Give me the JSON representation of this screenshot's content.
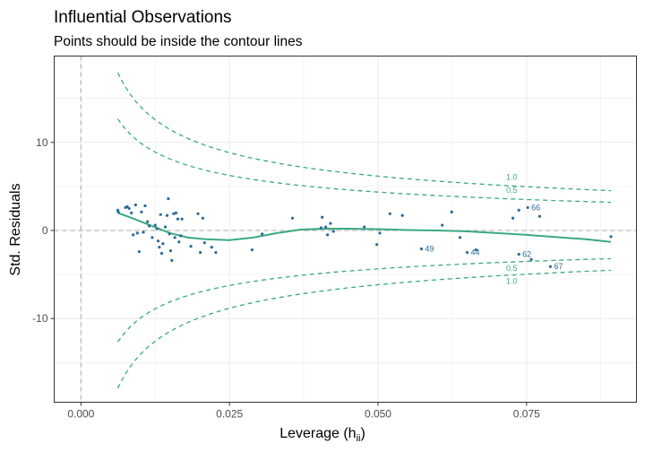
{
  "chart_data": {
    "type": "scatter",
    "title": "Influential Observations",
    "subtitle": "Points should be inside the contour lines",
    "xlabel": "Leverage (h",
    "xlabel_sub": "ii",
    "xlabel_close": ")",
    "ylabel": "Std. Residuals",
    "xlim": [
      -0.0045,
      0.0935
    ],
    "ylim": [
      -19.5,
      19.8
    ],
    "x_ticks": [
      0.0,
      0.025,
      0.05,
      0.075
    ],
    "x_tick_labels": [
      "0.000",
      "0.025",
      "0.050",
      "0.075"
    ],
    "y_ticks": [
      -10,
      0,
      10
    ],
    "y_tick_labels": [
      "-10",
      "0",
      "10"
    ],
    "grid": true,
    "colors": {
      "points": "#2d6a97",
      "contour": "#3aaa80",
      "smooth": "#3aaa80",
      "reference": "#a6a6a6"
    },
    "points": [
      {
        "x": 0.0062,
        "y": 2.3
      },
      {
        "x": 0.0063,
        "y": 2.1
      },
      {
        "x": 0.0075,
        "y": 2.6
      },
      {
        "x": 0.0078,
        "y": 2.7
      },
      {
        "x": 0.0081,
        "y": 2.5
      },
      {
        "x": 0.0088,
        "y": -0.5
      },
      {
        "x": 0.0085,
        "y": 2.0
      },
      {
        "x": 0.0092,
        "y": 2.9
      },
      {
        "x": 0.0095,
        "y": -0.3
      },
      {
        "x": 0.0098,
        "y": -2.4
      },
      {
        "x": 0.0102,
        "y": 2.1
      },
      {
        "x": 0.0105,
        "y": -0.2
      },
      {
        "x": 0.0108,
        "y": 2.8
      },
      {
        "x": 0.0112,
        "y": 1.0
      },
      {
        "x": 0.0115,
        "y": 0.5
      },
      {
        "x": 0.012,
        "y": -0.8
      },
      {
        "x": 0.0125,
        "y": 0.6
      },
      {
        "x": 0.0128,
        "y": 0.2
      },
      {
        "x": 0.013,
        "y": -1.2
      },
      {
        "x": 0.0132,
        "y": -1.9
      },
      {
        "x": 0.0134,
        "y": 1.8
      },
      {
        "x": 0.0136,
        "y": -2.6
      },
      {
        "x": 0.0138,
        "y": -1.5
      },
      {
        "x": 0.0142,
        "y": 0.4
      },
      {
        "x": 0.0145,
        "y": 1.7
      },
      {
        "x": 0.0147,
        "y": 3.6
      },
      {
        "x": 0.0149,
        "y": -0.4
      },
      {
        "x": 0.0151,
        "y": -2.3
      },
      {
        "x": 0.0153,
        "y": -3.4
      },
      {
        "x": 0.0156,
        "y": 1.9
      },
      {
        "x": 0.0158,
        "y": -0.8
      },
      {
        "x": 0.016,
        "y": 2.0
      },
      {
        "x": 0.0163,
        "y": 1.3
      },
      {
        "x": 0.0165,
        "y": -1.3
      },
      {
        "x": 0.0168,
        "y": -0.6
      },
      {
        "x": 0.017,
        "y": 1.3
      },
      {
        "x": 0.0185,
        "y": -1.8
      },
      {
        "x": 0.0197,
        "y": 1.9
      },
      {
        "x": 0.0201,
        "y": -2.5
      },
      {
        "x": 0.0205,
        "y": 1.4
      },
      {
        "x": 0.0208,
        "y": -1.4
      },
      {
        "x": 0.022,
        "y": -1.9
      },
      {
        "x": 0.0227,
        "y": -2.5
      },
      {
        "x": 0.0288,
        "y": -2.2
      },
      {
        "x": 0.0305,
        "y": -0.4
      },
      {
        "x": 0.0356,
        "y": 1.4
      },
      {
        "x": 0.0404,
        "y": 0.3
      },
      {
        "x": 0.0406,
        "y": 1.5
      },
      {
        "x": 0.0412,
        "y": 0.4
      },
      {
        "x": 0.0415,
        "y": -0.5
      },
      {
        "x": 0.042,
        "y": 0.8
      },
      {
        "x": 0.0425,
        "y": -0.1
      },
      {
        "x": 0.0477,
        "y": 0.4
      },
      {
        "x": 0.0498,
        "y": -1.6
      },
      {
        "x": 0.0503,
        "y": -0.3
      },
      {
        "x": 0.052,
        "y": 1.9
      },
      {
        "x": 0.0541,
        "y": 1.7
      },
      {
        "x": 0.0573,
        "y": -2.1
      },
      {
        "x": 0.0608,
        "y": 0.6
      },
      {
        "x": 0.0624,
        "y": 2.1
      },
      {
        "x": 0.0638,
        "y": -0.8
      },
      {
        "x": 0.065,
        "y": -2.5
      },
      {
        "x": 0.0665,
        "y": -2.2
      },
      {
        "x": 0.0727,
        "y": 1.4
      },
      {
        "x": 0.0737,
        "y": -2.7
      },
      {
        "x": 0.0737,
        "y": 2.3
      },
      {
        "x": 0.0752,
        "y": 2.6
      },
      {
        "x": 0.0758,
        "y": -3.3
      },
      {
        "x": 0.0772,
        "y": 1.6
      },
      {
        "x": 0.079,
        "y": -4.1
      },
      {
        "x": 0.0892,
        "y": -0.7
      }
    ],
    "labeled_points": [
      {
        "label": "66",
        "x": 0.0752,
        "y": 2.6
      },
      {
        "label": "49",
        "x": 0.0573,
        "y": -2.1
      },
      {
        "label": "44",
        "x": 0.065,
        "y": -2.5
      },
      {
        "label": "62",
        "x": 0.0737,
        "y": -2.7
      },
      {
        "label": "67",
        "x": 0.079,
        "y": -4.1
      }
    ],
    "contours": [
      {
        "label": "1.0",
        "k": 1.0
      },
      {
        "label": "0.5",
        "k": 0.5
      }
    ],
    "contour_x_range": [
      0.0062,
      0.0892
    ],
    "smooth": [
      [
        0.0062,
        2.0
      ],
      [
        0.009,
        1.3
      ],
      [
        0.012,
        0.5
      ],
      [
        0.015,
        -0.3
      ],
      [
        0.018,
        -0.8
      ],
      [
        0.021,
        -1.0
      ],
      [
        0.025,
        -1.1
      ],
      [
        0.029,
        -0.8
      ],
      [
        0.033,
        -0.3
      ],
      [
        0.037,
        0.1
      ],
      [
        0.041,
        0.2
      ],
      [
        0.045,
        0.2
      ],
      [
        0.05,
        0.15
      ],
      [
        0.055,
        0.05
      ],
      [
        0.06,
        0.0
      ],
      [
        0.065,
        -0.1
      ],
      [
        0.07,
        -0.3
      ],
      [
        0.075,
        -0.5
      ],
      [
        0.08,
        -0.75
      ],
      [
        0.085,
        -1.0
      ],
      [
        0.0892,
        -1.3
      ]
    ]
  }
}
